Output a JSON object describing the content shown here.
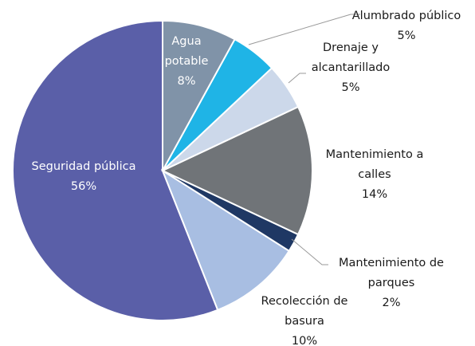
{
  "chart_data": {
    "type": "pie",
    "categories": [
      "Agua potable",
      "Alumbrado público",
      "Drenaje y alcantarillado",
      "Mantenimiento a calles",
      "Mantenimiento de parques",
      "Recolección de basura",
      "Seguridad pública"
    ],
    "values": [
      8,
      5,
      5,
      14,
      2,
      10,
      56
    ],
    "value_labels": [
      "8%",
      "5%",
      "5%",
      "14%",
      "2%",
      "10%",
      "56%"
    ],
    "colors": [
      "#8093a8",
      "#1fb4e6",
      "#ccd8ea",
      "#707478",
      "#1f3864",
      "#a8bee2",
      "#5a5fa8"
    ]
  }
}
